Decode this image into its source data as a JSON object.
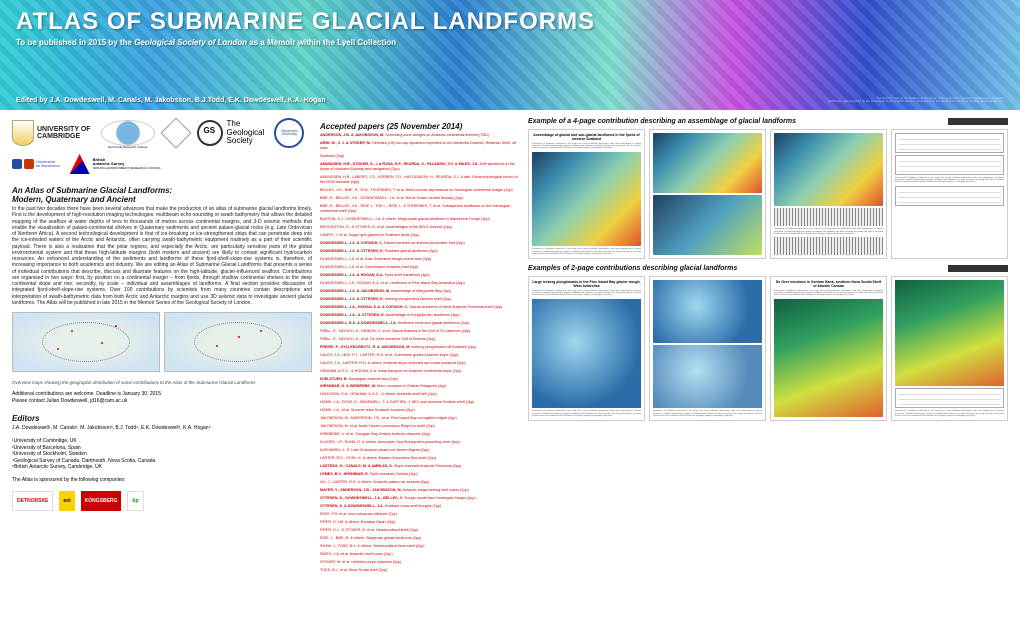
{
  "banner": {
    "title": "ATLAS OF SUBMARINE GLACIAL LANDFORMS",
    "subtitle_pre": "To be published in 2015 by the ",
    "subtitle_em": "Geological Society of London",
    "subtitle_post": " as a Memoir within the Lyell Collection",
    "editors": "Edited by J.A. Dowdeswell, M. Canals, M. Jakobsson, B.J.Todd, E.K. Dowdeswell, K.A. Hogan",
    "flair1": "Perspective view of the seafloor at the mouth of Kongsfjorden, northwest Spitsbergen, Svalbard",
    "flair2": "Multibeam data acquired by the Norwegian Hydrographic Service; processing by the Geological Survey of Norway. Grid-cell size 5 m"
  },
  "logos": {
    "cambridge": "UNIVERSITY OF\nCAMBRIDGE",
    "su": "Stockholm University",
    "ub": "Universitat de Barcelona",
    "bas": "British Antarctic Survey",
    "nerc": "NATURAL ENVIRONMENT RESEARCH COUNCIL",
    "geosoc": "The Geological Society"
  },
  "left": {
    "h1": "An Atlas of Submarine Glacial Landforms:",
    "h2": "Modern, Quaternary and Ancient",
    "body": "In the past two decades there have been several advances that make the production of an atlas of submarine glacial landforms timely. First is the development of high-resolution imaging technologies: multibeam echo-sounding or swath bathymetry that allows the detailed mapping of the seafloor at water depths of tens to thousands of metres across continental margins, and 3-D seismic methods that enable the visualisation of palaeo-continental shelves in Quaternary sediments and ancient palaeo-glacial rocks (e.g. Late Ordovician of Northern Africa). A second technological development is that of ice-breaking or ice-strengthened ships that can penetrate deep into the ice-infested waters of the Arctic and Antarctic, often carrying swath-bathymetric equipment routinely as a part of their scientific payload. There is also a realisation that the polar regions, and especially the Arctic, are particularly sensitive parts of the global environmental system and that these high-latitude margins (both modern and ancient) are likely to contain significant hydrocarbon resources. An enhanced understanding of the sediments and landforms of these fjord-shelf-slope-rise systems is, therefore, of increasing importance to both academics and industry. We are editing an Atlas of Submarine Glacial Landforms that presents a series of individual contributions that describe, discuss and illustrate features on the high-latitude, glacier-influenced seafloor. Contributions are organised in two ways: first, by position on a continental margin – from fjords, through shallow continental shelves to the deep continental slope and rise; secondly, by scale – individual and assemblages of landforms. A final section provides discussion of integrated fjord-shelf-slope-rise systems. Over 100 contributions by scientists from many countries contain descriptions and interpretation of swath-bathymetric data from both Arctic and Antarctic margins and use 3D seismic data to investigate ancient glacial landforms. The Atlas will be published in late 2015 in the Memoir Series of the Geological Society of London.",
    "map_caption": "Overview maps showing the geographic distribution of some contributions to the Atlas of the Submarine Glacial Landforms",
    "add1": "Additional contributions are welcome. Deadline is January 30, 2015.",
    "add2": "Please contact Julian Dowdeswell, jd16@cam.ac.uk",
    "ed_h": "Editors",
    "ed_line": "J.A. Dowdeswell¹, M. Canals², M. Jakobsson³, B.J. Todd⁴, E.K. Dowdeswell¹, K.A. Hogan⁵",
    "aff1": "¹University of Cambridge, UK",
    "aff2": "²University of Barcelona, Spain",
    "aff3": "³University of Stockholm, Sweden",
    "aff4": "⁴Geological Survey of Canada, Dartmouth, Nova Scotia, Canada",
    "aff5": "⁵British Antarctic Survey, Cambridge, UK",
    "spons": "The Atlas is sponsored by the following companies:"
  },
  "sponsors": [
    "DETNORSKE",
    "eni",
    "KONGSBERG",
    "bp"
  ],
  "mid": {
    "h": "Accepted papers (25 November 2014)",
    "refs": [
      "ANDERSON, J.B. & JAKOBSSON, M. Grounding-zone wedges on Antarctic continental shelves (TBD)",
      "ARMI, M., V. J. & STOKER, M. Hebrides (UK) ice-cap dynamics imprinted on the Minandra Channel, Rhannan Shelf, off west",
      "Scotland (2pp)",
      "AMUNDSEN, H.B., STOKER, S., L A ROSA, R.F., REURDA, S., PALANSKI, V.V. & MILES, J.K. Drift sandforms in the fjords of Nordland (Norway and navigation) (2pp)",
      "AMUNDSEN, H.B., LABERG, J.S., VORREN, T.O., HAFLIDASON, H., REURDA, S.J. & altri. Geomorphological record of the NCM barnacle (2pp)",
      "BELLEC, V.K., BØE, R., R-M., THORSNES, T. et al. Semi-circular depressions on Norwegian continental margin (2pp)",
      "BØE, R., BELLEC, V.K., DOWDESWELL, J.A. et al. Norne Crater, central Norway (2pp)",
      "BØE, R., BELLEC, V.K., RISE, L. THE L., RISE, L. & THORSNES, T. et al. Subaqueous landforms on the Norwegian continental shelf (2pp)",
      "BURTON, D.J., DOWDESWELL, J.A. & others. Mega-scale glacial lineations in Mackenzie Trough (2pp)",
      "BROUGHTON, D., & STOKES, D. et al. Assemblages of the BELS channel (2pp)",
      "CAMPO, J. et al. Surge-type glaciers in Svalbard fjords (2pp)",
      "DOWDESWELL, J.A. & COFAIGH, C. Eskers beneath ice shelves Amundsen Sea (2pp)",
      "DOWDESWELL, J.A. & OTTESEN, D. Svalbard glacial landforms (2pp)",
      "DOWDESWELL, J.A. et al. East Greenland trough-mouth fans (2pp)",
      "DOWDESWELL, J.A. et al. Drumlinised moraines east (2pp)",
      "DOWDESWELL, J.A. & HOGAN, K.A. Fjord-shelf transitions (4pp)",
      "DOWDESWELL, J.A., HOGAN, K.A. et al. Landforms of Pine Island Bay Antarctica (4pp)",
      "DOWDESWELL, J.A. & JAKOBSSON, M. Assemblage of Marguerite Bay (4pp)",
      "DOWDESWELL, J.A. & OTTESEN, D. Iceberg ploughmarks Barents shelf (2pp)",
      "DOWDESWELL, J.A., HOGAN, K.A. & COFAIGH, C. Glacial landforms of West Antarctic Peninsula shelf (4pp)",
      "DOWDESWELL, J.A., & OTTESEN, D. Assemblage of Kongsfjorden landforms (4pp)",
      "DOWDESWELL, E.K. & DOWDESWELL, J.A. Sediment cores and glacial landforms (2pp)",
      "PIÑAL, G., SAYAGO, A., GRINON, C. et al. Glacial features in the Gulf of St Lawrence (2pp)",
      "PIÑAL, G., SAYAGO, A., et al. De Geer moraines Gulf of Bothnia (2pp)",
      "FREIRE, F., GYLLENCREUTZ, R. & JAKOBSSON, M. Iceberg ploughmarks off Svalbard (2pp)",
      "GALES, J.A, LEAT, P.T., LARTER, R.D. et al. Submarine gullies Antarctic slope (2pp)",
      "GALES, J.A., LARTER, R.D. & others. Antarctic slope channels and mass-transport (2pp)",
      "GRAHAM, A.G.C., & HOGAN, K.A. mass transport on Antarctic continental slope (2pp)",
      "HJELSTUEN, B. Norwegian channel fans (2pp)",
      "HIRSHBAR, D. & WEINREBE, W. Moro moraines in Chilean Patagonia (2pp)",
      "HODGSON, D.A., GRAHAM, A.G.C., & others. Antarctic shelf drill (2pp)",
      "HOWE, J.A., DOVE, D., BRADWELL, T. & GAFFIRA, J. NEC and drumlins Scottish shelf (2pp)",
      "HOWE, J.A., et al. Summer Isles Scotland moraines (2pp)",
      "JAKOBSSON, M., ANDERSON, J.B., et al. Pine Island Bay corrugation ridges (2pp)",
      "JAKOBSSON, M. et al. Arctic Ocean Lomonosov Ridge ice-shelf (2pp)",
      "KIRKBRIDE, V. et al. Georgian Bay Ontario bedrock channels (2pp)",
      "KLAGES, J.P., KUHN, G. & others. Amundsen Sea Embayment grounding zone (4pp)",
      "KURJAŃSKI, L. S. Late Ordovician palaeo-ice stream Algeria (2pp)",
      "LARTER, R.D., GOHL, K. & others. Eastern Amundsen Sea shelf (2pp)",
      "LASTRAS, G., CANALS, M. & AMBLAS, D. Slope channels Antarctic Peninsula (2pp)",
      "LEMES, B.V., HIRSHBAR, D. Fjord moraines Chilean (2pp)",
      "LIU, J., LARTER, R.D. & others. Antarctic palaeo-ice streams (2pp)",
      "MAYER, V., ANDERSON, J.B., JAKOBSSON, M. Antarctic mega-iceberg keel marks (2pp)",
      "OTTESEN, D., DOWDESWELL, J.A., BELLEC, V. Trough-mouth fans Norwegian margin (4pp)",
      "OTTESEN, D. & DOWDESWELL, J.A. Svalbard cross-shelf troughs (2pp)",
      "PASS, F.R. et al. mud volcanoes offshore (2pp)",
      "PIPER, D.J.W. & others. Eurasian Basin (2pp)",
      "PIPER, D.J., K STOKER, R. et al. Newfoundland shelf (2pp)",
      "RISE, L., BØE, R. & others. Skagerrak glacial landforms (2pp)",
      "SHAW, J., TODD, B.J. & others. Newfoundland inner shelf (2pp)",
      "SMITH, J.A. et al. Antarctic shelf cores (2pp)",
      "STOKER, M. et al. Hebrides slope channels (2pp)",
      "TODD, B.J. et al. Nova Scotia shelf (2pp)"
    ]
  },
  "right": {
    "h4": "Example of a 4-page contribution describing an assemblage of glacial landforms",
    "h2": "Examples of 2-page contributions describing glacial landforms",
    "pg_titles": [
      "Assemblage of glacial and sub-glacial landforms in the fjords of western Svalbard",
      "",
      "",
      "",
      "Large iceberg ploughmarks in the Pine Island Bay glacier trough, West Antarctica",
      "",
      "De Geer moraines in German Bank, southern Nova Scotia Shelf of Atlantic Canada",
      ""
    ],
    "filler": "Description of landforms observed in the study area using multibeam bathymetric data and interpretation of glacial processes. Detailed morphometric analysis combined with sediment core data constrains the timing and style of ice-sheet retreat across the continental shelf. References and figure captions accompany each plate."
  }
}
